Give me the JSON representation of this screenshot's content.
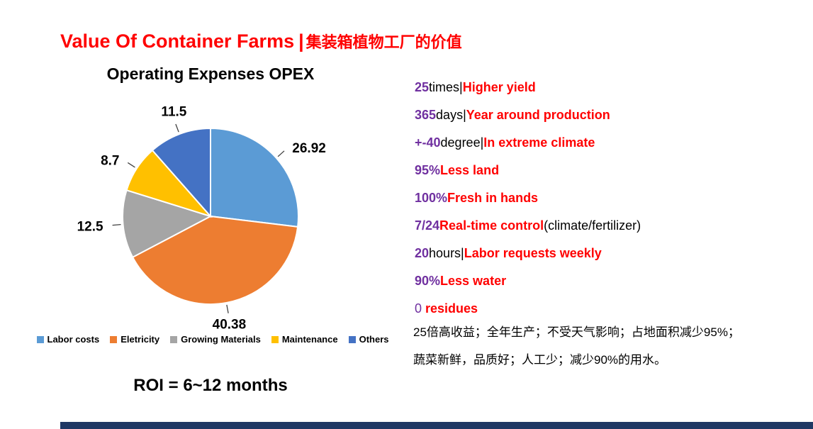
{
  "title": {
    "en": "Value Of  Container Farms",
    "divider": "|",
    "zh": "集装箱植物工厂的价值",
    "color": "#FF0000"
  },
  "chart_data": {
    "type": "pie",
    "title": "Operating Expenses OPEX",
    "categories": [
      "Labor costs",
      "Eletricity",
      "Growing Materials",
      "Maintenance",
      "Others"
    ],
    "values": [
      26.92,
      40.38,
      12.5,
      8.7,
      11.5
    ],
    "data_labels": [
      "26.92",
      "40.38",
      "12.5",
      "8.7",
      "11.5"
    ],
    "colors": [
      "#5B9BD5",
      "#ED7D31",
      "#A5A5A5",
      "#FFC000",
      "#4472C4"
    ],
    "start_angle_deg": 0,
    "direction": "clockwise",
    "legend_position": "bottom",
    "grid": false
  },
  "roi_text": "ROI = 6~12 months",
  "benefits": {
    "accent_color": "#7030A0",
    "highlight_color": "#FF0000",
    "lines": [
      {
        "segments": [
          {
            "text": "25",
            "style": "num"
          },
          {
            "text": "times|",
            "style": "plain"
          },
          {
            "text": "Higher yield",
            "style": "red"
          }
        ]
      },
      {
        "segments": [
          {
            "text": "365",
            "style": "num"
          },
          {
            "text": "days|",
            "style": "plain"
          },
          {
            "text": "Year around production",
            "style": "red"
          }
        ]
      },
      {
        "segments": [
          {
            "text": "+-40",
            "style": "num"
          },
          {
            "text": "degree|",
            "style": "plain"
          },
          {
            "text": "In extreme climate",
            "style": "red"
          }
        ]
      },
      {
        "segments": [
          {
            "text": "95%",
            "style": "num"
          },
          {
            "text": "Less land",
            "style": "red"
          }
        ]
      },
      {
        "segments": [
          {
            "text": "100%",
            "style": "num"
          },
          {
            "text": "Fresh in hands",
            "style": "red"
          }
        ]
      },
      {
        "segments": [
          {
            "text": "7/24",
            "style": "num"
          },
          {
            "text": "Real-time control",
            "style": "red"
          },
          {
            "text": "(climate/fertilizer)",
            "style": "plain"
          }
        ]
      },
      {
        "segments": [
          {
            "text": "20",
            "style": "num"
          },
          {
            "text": "hours|",
            "style": "plain"
          },
          {
            "text": "Labor requests weekly",
            "style": "red"
          }
        ]
      },
      {
        "segments": [
          {
            "text": "90%",
            "style": "num"
          },
          {
            "text": "Less water",
            "style": "red"
          }
        ]
      },
      {
        "segments": [
          {
            "text": "0",
            "style": "num-light"
          },
          {
            "text": " residues",
            "style": "red"
          }
        ]
      }
    ]
  },
  "notes_zh": [
    "25倍高收益；全年生产；不受天气影响；占地面积减少95%；",
    "蔬菜新鲜，品质好；人工少；减少90%的用水。"
  ],
  "footer_bar_color": "#1F3864"
}
